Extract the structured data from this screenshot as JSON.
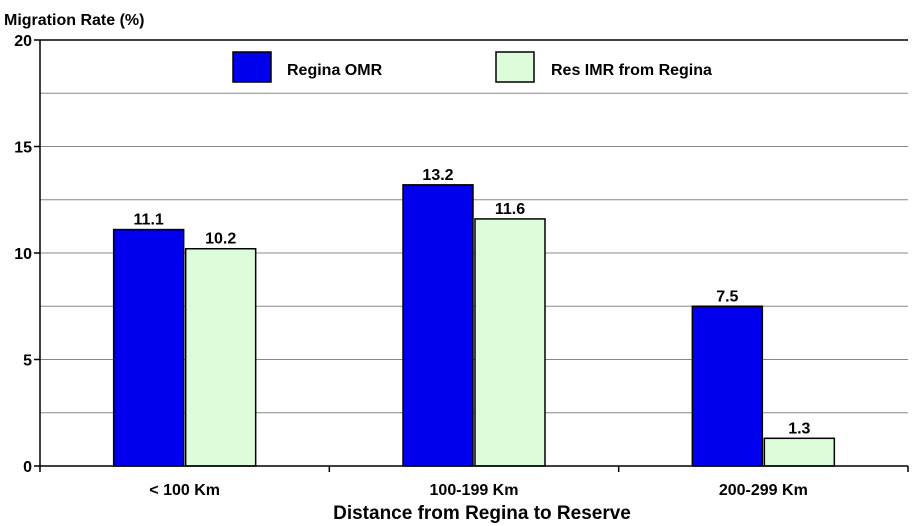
{
  "chart_data": {
    "type": "bar",
    "title": "",
    "ylabel": "Migration Rate (%)",
    "xlabel": "Distance from Regina to Reserve",
    "categories": [
      "< 100 Km",
      "100-199 Km",
      "200-299 Km"
    ],
    "series": [
      {
        "name": "Regina OMR",
        "values": [
          11.1,
          13.2,
          7.5
        ],
        "color": "#0000ee"
      },
      {
        "name": "Res IMR from Regina",
        "values": [
          10.2,
          11.6,
          1.3
        ],
        "color": "#ddfcd9"
      }
    ],
    "data_labels": [
      [
        "11.1",
        "13.2",
        "7.5"
      ],
      [
        "10.2",
        "11.6",
        "1.3"
      ]
    ],
    "ylim": [
      0,
      20
    ],
    "yticks": [
      0,
      5,
      10,
      15,
      20
    ],
    "grid": true,
    "legend": "top"
  }
}
